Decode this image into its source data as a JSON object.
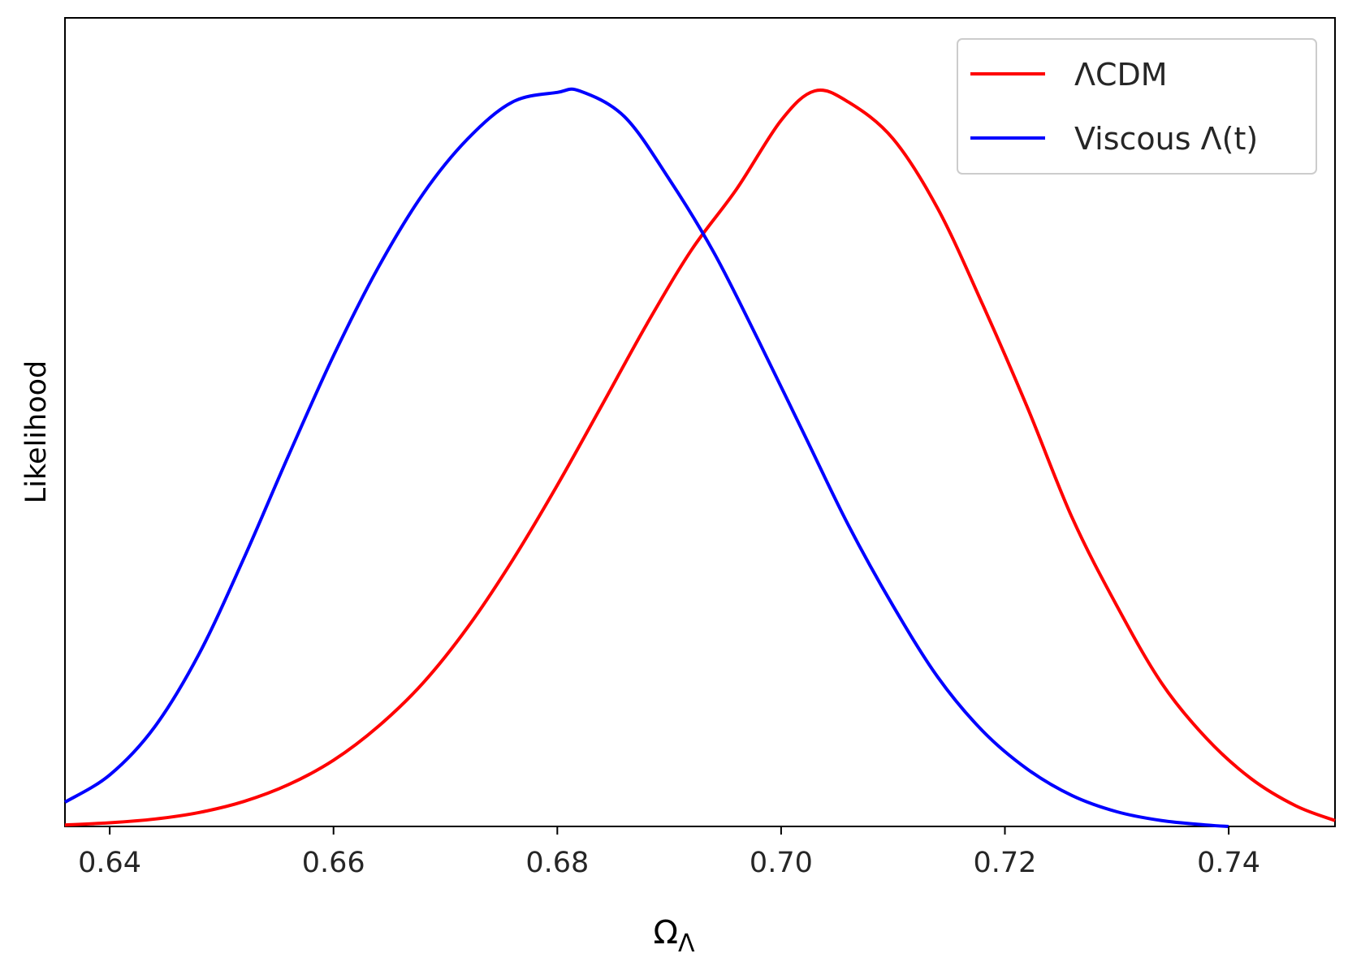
{
  "chart_data": {
    "type": "line",
    "title": "",
    "xlabel": "Ω",
    "xlabel_subscript": "Λ",
    "ylabel": "Likelihood",
    "xlim": [
      0.636,
      0.7495
    ],
    "ylim": [
      0,
      1.0
    ],
    "x_ticks": [
      0.64,
      0.66,
      0.68,
      0.7,
      0.72,
      0.74
    ],
    "x_tick_labels": [
      "0.64",
      "0.66",
      "0.68",
      "0.70",
      "0.72",
      "0.74"
    ],
    "y_ticks_shown": false,
    "grid": false,
    "legend_position": "top-right",
    "series": [
      {
        "name": "ΛCDM",
        "color": "#ff0000",
        "x": [
          0.636,
          0.64,
          0.644,
          0.648,
          0.652,
          0.656,
          0.66,
          0.664,
          0.668,
          0.672,
          0.676,
          0.68,
          0.684,
          0.688,
          0.692,
          0.696,
          0.7,
          0.703,
          0.706,
          0.71,
          0.714,
          0.718,
          0.722,
          0.726,
          0.73,
          0.734,
          0.738,
          0.742,
          0.746,
          0.7495
        ],
        "values": [
          0.002,
          0.005,
          0.01,
          0.019,
          0.034,
          0.057,
          0.09,
          0.136,
          0.195,
          0.271,
          0.362,
          0.464,
          0.573,
          0.683,
          0.784,
          0.866,
          0.96,
          1.0,
          0.985,
          0.935,
          0.84,
          0.71,
          0.57,
          0.42,
          0.3,
          0.195,
          0.12,
          0.065,
          0.028,
          0.008
        ]
      },
      {
        "name": "Viscous Λ(t)",
        "color": "#0000ff",
        "x": [
          0.636,
          0.64,
          0.644,
          0.648,
          0.652,
          0.656,
          0.66,
          0.664,
          0.668,
          0.672,
          0.676,
          0.68,
          0.682,
          0.686,
          0.69,
          0.694,
          0.698,
          0.702,
          0.706,
          0.71,
          0.714,
          0.718,
          0.722,
          0.726,
          0.73,
          0.734,
          0.738,
          0.74
        ],
        "values": [
          0.033,
          0.07,
          0.135,
          0.235,
          0.365,
          0.505,
          0.64,
          0.76,
          0.86,
          0.935,
          0.985,
          0.998,
          1.0,
          0.965,
          0.88,
          0.78,
          0.66,
          0.535,
          0.41,
          0.3,
          0.203,
          0.13,
          0.078,
          0.042,
          0.02,
          0.008,
          0.002,
          0.0
        ]
      }
    ]
  }
}
